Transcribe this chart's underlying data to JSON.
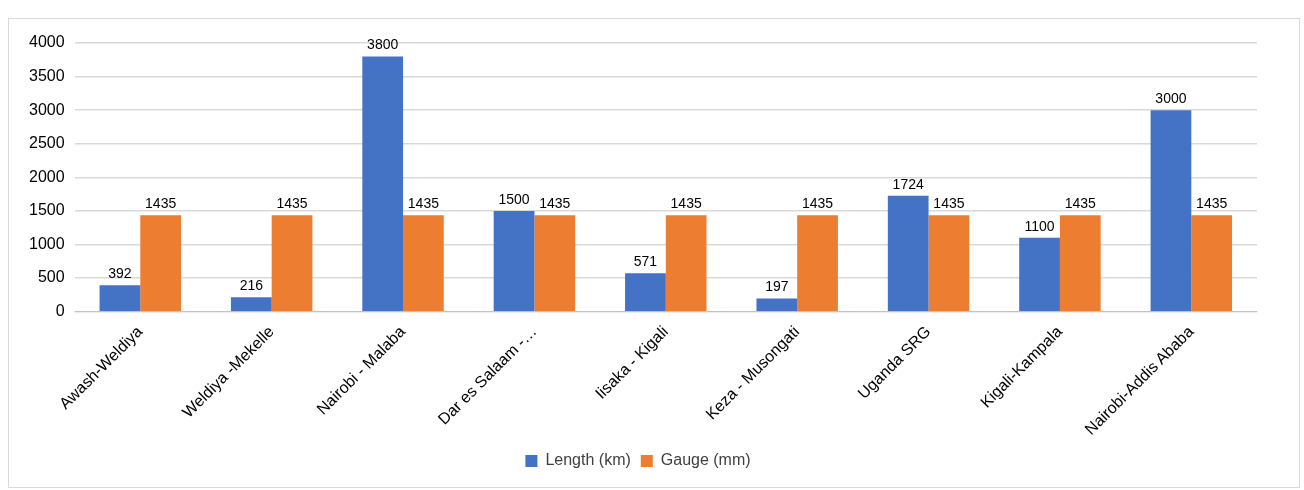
{
  "chart_data": {
    "type": "bar",
    "categories": [
      "Awash-Weldiya",
      "Weldiya -Mekelle",
      "Nairobi - Malaba",
      "Dar es Salaam -…",
      "Iisaka - Kigali",
      "Keza - Musongati",
      "Uganda SRG",
      "Kigali-Kampala",
      "Nairobi-Addis Ababa"
    ],
    "series": [
      {
        "name": "Length (km)",
        "color": "#4472c4",
        "values": [
          392,
          216,
          3800,
          1500,
          571,
          197,
          1724,
          1100,
          3000
        ]
      },
      {
        "name": "Gauge (mm)",
        "color": "#ed7d31",
        "values": [
          1435,
          1435,
          1435,
          1435,
          1435,
          1435,
          1435,
          1435,
          1435
        ]
      }
    ],
    "ylim": [
      0,
      4000
    ],
    "yticks": [
      0,
      500,
      1000,
      1500,
      2000,
      2500,
      3000,
      3500,
      4000
    ],
    "grid": "y",
    "legend": "bottom",
    "data_labels": true
  }
}
